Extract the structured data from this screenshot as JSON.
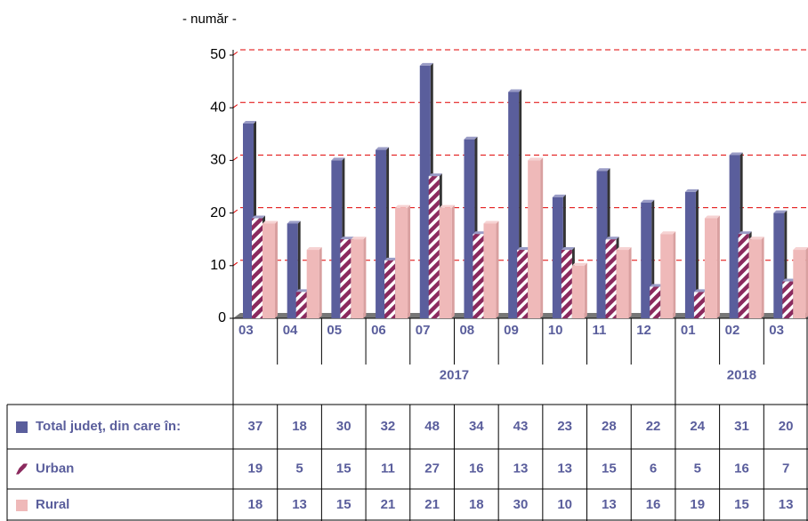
{
  "chart_data": {
    "type": "bar",
    "y_label": "- număr -",
    "groups": [
      {
        "label": "2017",
        "categories": [
          "03",
          "04",
          "05",
          "06",
          "07",
          "08",
          "09",
          "10",
          "11",
          "12"
        ]
      },
      {
        "label": "2018",
        "categories": [
          "01",
          "02",
          "03"
        ]
      }
    ],
    "series": [
      {
        "name": "Total judeţ, din care în:",
        "color": "#5a5e9c",
        "values": [
          37,
          18,
          30,
          32,
          48,
          34,
          43,
          23,
          28,
          22,
          24,
          31,
          20
        ]
      },
      {
        "name": "Urban",
        "color": "#8b2a5e",
        "values": [
          19,
          5,
          15,
          11,
          27,
          16,
          13,
          13,
          15,
          6,
          5,
          16,
          7
        ]
      },
      {
        "name": "Rural",
        "color": "#efb9b9",
        "values": [
          18,
          13,
          15,
          21,
          21,
          18,
          30,
          10,
          13,
          16,
          19,
          15,
          13
        ]
      }
    ],
    "ylim": [
      0,
      50
    ],
    "yticks": [
      0,
      10,
      20,
      30,
      40,
      50
    ],
    "grid": true
  }
}
